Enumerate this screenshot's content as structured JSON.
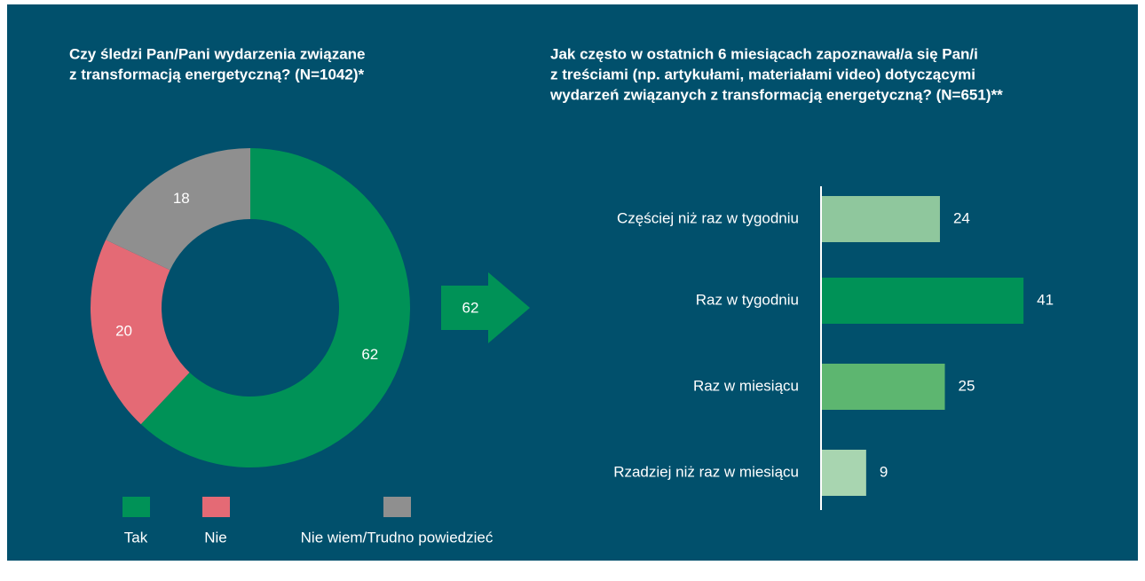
{
  "chart_data": [
    {
      "type": "donut",
      "title": [
        "Czy śledzi Pan/Pani wydarzenia związane",
        "z transformacją energetyczną? (N=1042)*"
      ],
      "categories": [
        "Tak",
        "Nie",
        "Nie wiem/Trudno powiedzieć"
      ],
      "values": [
        62,
        20,
        18
      ],
      "colors": [
        "#009257",
        "#e46a75",
        "#8f8f8f"
      ],
      "legend": "bottom"
    },
    {
      "type": "hbar",
      "title": [
        "Jak często w ostatnich 6 miesiącach zapoznawał/a się Pan/i",
        "z treściami (np. artykułami, materiałami video) dotyczącymi",
        "wydarzeń związanych z transformacją energetyczną? (N=651)**"
      ],
      "categories": [
        "Częściej niż raz w tygodniu",
        "Raz w tygodniu",
        "Raz w miesiącu",
        "Rzadziej niż raz w miesiącu"
      ],
      "values": [
        24,
        41,
        25,
        9
      ],
      "colors": [
        "#8fc79d",
        "#009257",
        "#5db670",
        "#a8d5b0"
      ]
    }
  ]
}
